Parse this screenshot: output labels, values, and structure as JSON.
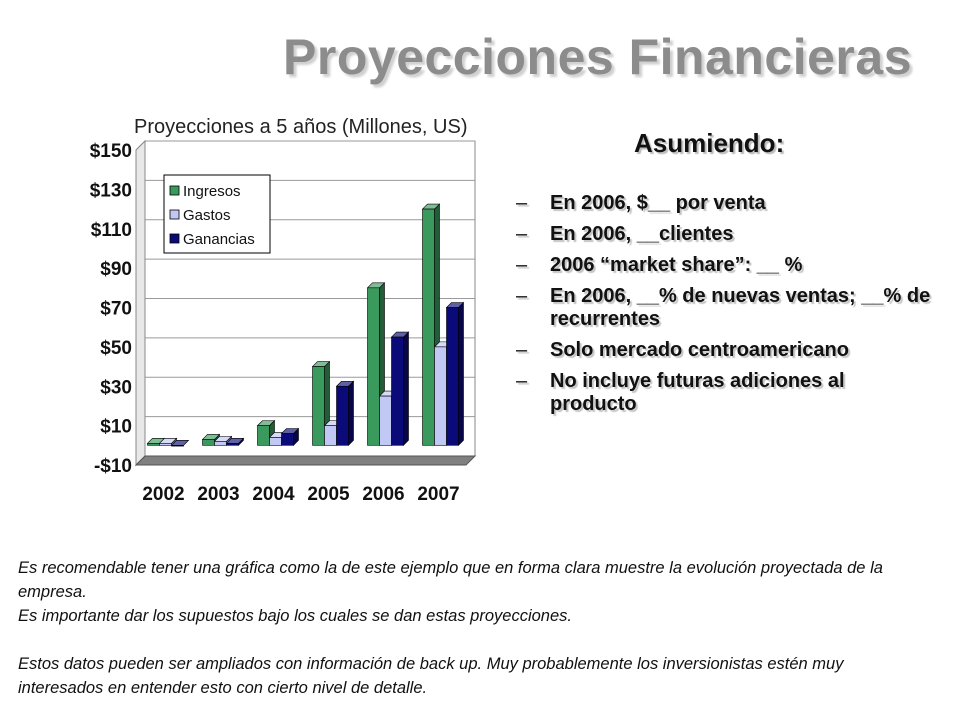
{
  "title": "Proyecciones Financieras",
  "assumptions": {
    "heading": "Asumiendo:",
    "dash": "–",
    "items": [
      "En 2006,  $__ por venta",
      "En 2006, __clientes",
      "2006 “market share”: __ %",
      "En 2006, __% de nuevas ventas; __% de recurrentes",
      "Solo mercado centroamericano",
      "No incluye futuras adiciones al producto"
    ]
  },
  "notes": [
    "Es recomendable tener una gráfica como la de este ejemplo que en forma clara muestre la evolución proyectada de la empresa.",
    "Es importante dar los supuestos bajo los cuales se dan estas proyecciones.",
    "Estos datos pueden ser ampliados con información de back up. Muy probablemente los inversionistas estén muy interesados en entender esto con cierto nivel de detalle."
  ],
  "chart_data": {
    "type": "bar",
    "title": "Proyecciones a 5 años (Millones, US)",
    "categories": [
      "2002",
      "2003",
      "2004",
      "2005",
      "2006",
      "2007"
    ],
    "series": [
      {
        "name": "Ingresos",
        "color": "#3a9a5e",
        "values": [
          1,
          3,
          10,
          40,
          80,
          120
        ]
      },
      {
        "name": "Gastos",
        "color": "#c2c8f4",
        "values": [
          1,
          2,
          4,
          10,
          25,
          50
        ]
      },
      {
        "name": "Ganancias",
        "color": "#0a0a78",
        "values": [
          0,
          1,
          6,
          30,
          55,
          70
        ]
      }
    ],
    "ylim": [
      -10,
      150
    ],
    "yticks": [
      -10,
      10,
      30,
      50,
      70,
      90,
      110,
      130,
      150
    ],
    "ytick_labels": [
      "-$10",
      "$10",
      "$30",
      "$50",
      "$70",
      "$90",
      "$110",
      "$130",
      "$150"
    ],
    "grid": true,
    "legend": "top-left",
    "style": "3d"
  }
}
